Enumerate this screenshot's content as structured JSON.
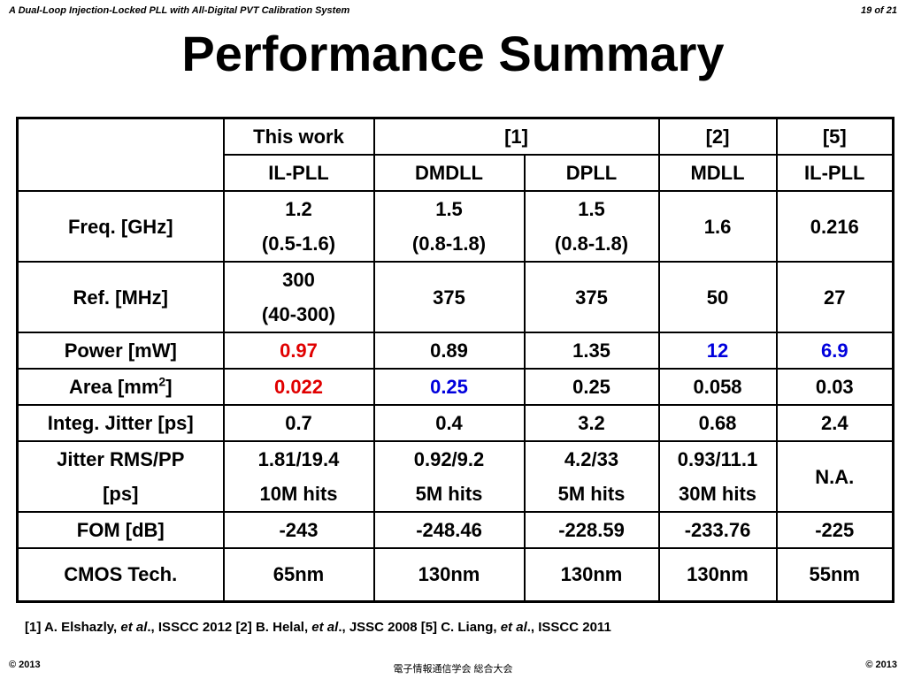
{
  "header": {
    "left": "A Dual-Loop Injection-Locked PLL with All-Digital PVT Calibration System",
    "right": "19 of 21"
  },
  "title": "Performance Summary",
  "table": {
    "head1": [
      "This work",
      "[1]",
      "[2]",
      "[5]"
    ],
    "head2": [
      "IL-PLL",
      "DMDLL",
      "DPLL",
      "MDLL",
      "IL-PLL"
    ],
    "rows": {
      "freq": {
        "label": "Freq. [GHz]",
        "tw": [
          "1.2",
          "(0.5-1.6)"
        ],
        "dmdll": [
          "1.5",
          "(0.8-1.8)"
        ],
        "dpll": [
          "1.5",
          "(0.8-1.8)"
        ],
        "mdll": "1.6",
        "ilpll": "0.216"
      },
      "ref": {
        "label": "Ref. [MHz]",
        "tw": [
          "300",
          "(40-300)"
        ],
        "dmdll": "375",
        "dpll": "375",
        "mdll": "50",
        "ilpll": "27"
      },
      "power": {
        "label": "Power [mW]",
        "tw": "0.97",
        "dmdll": "0.89",
        "dpll": "1.35",
        "mdll": "12",
        "ilpll": "6.9"
      },
      "area": {
        "label_pre": "Area [mm",
        "label_sup": "2",
        "label_post": "]",
        "tw": "0.022",
        "dmdll": "0.25",
        "dpll": "0.25",
        "mdll": "0.058",
        "ilpll": "0.03"
      },
      "jitter": {
        "label": "Integ. Jitter [ps]",
        "tw": "0.7",
        "dmdll": "0.4",
        "dpll": "3.2",
        "mdll": "0.68",
        "ilpll": "2.4"
      },
      "rms": {
        "label": [
          "Jitter RMS/PP",
          "[ps]"
        ],
        "tw": [
          "1.81/19.4",
          "10M hits"
        ],
        "dmdll": [
          "0.92/9.2",
          "5M hits"
        ],
        "dpll": [
          "4.2/33",
          "5M hits"
        ],
        "mdll": [
          "0.93/11.1",
          "30M hits"
        ],
        "ilpll": "N.A."
      },
      "fom": {
        "label": "FOM [dB]",
        "tw": "-243",
        "dmdll": "-248.46",
        "dpll": "-228.59",
        "mdll": "-233.76",
        "ilpll": "-225"
      },
      "cmos": {
        "label": "CMOS Tech.",
        "tw": "65nm",
        "dmdll": "130nm",
        "dpll": "130nm",
        "mdll": "130nm",
        "ilpll": "55nm"
      }
    },
    "colors": {
      "highlight_red": "#e00000",
      "highlight_blue": "#0000dd"
    }
  },
  "references": {
    "r1_pre": "[1] A. Elshazly,  ",
    "r1_etal": "et al",
    "r1_post": "., ISSCC 2012 [2] B. Helal, ",
    "r2_etal": "et al",
    "r2_post": "., JSSC 2008 [5] C. Liang, ",
    "r5_etal": "et al",
    "r5_post": "., ISSCC 2011"
  },
  "footer": {
    "left": "© 2013",
    "center": "電子情報通信学会 総合大会",
    "right": "© 2013"
  }
}
